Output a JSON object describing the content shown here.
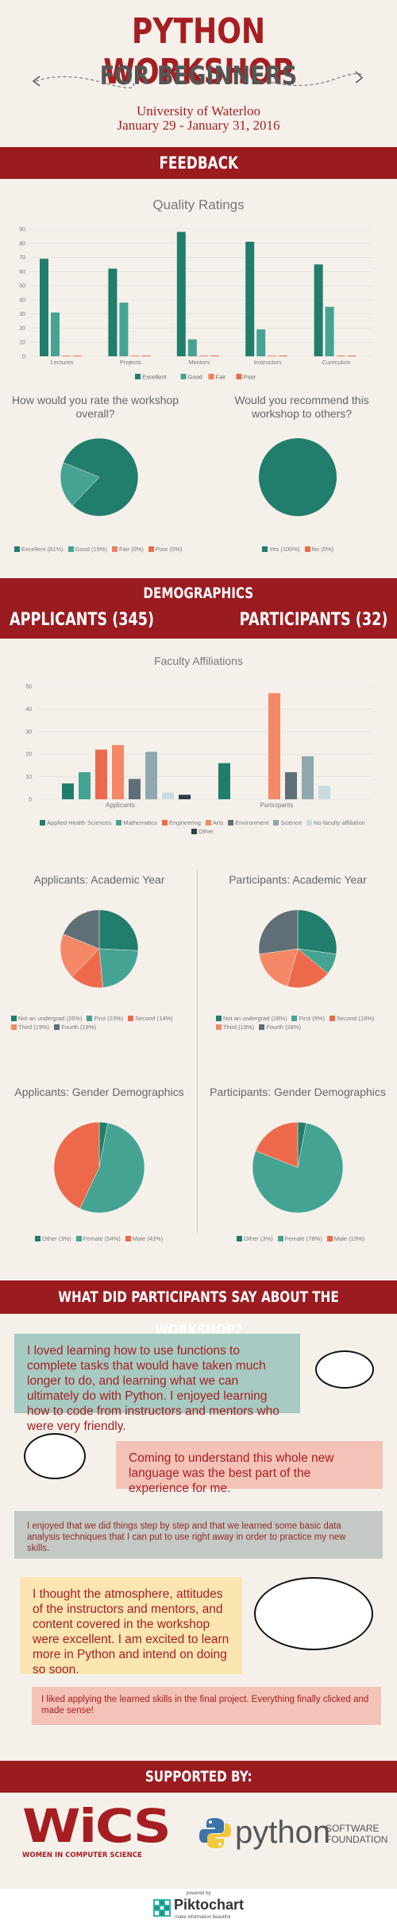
{
  "header": {
    "title": "PYTHON WORKSHOP",
    "subtitle": "FOR BEGINNERS",
    "university": "University of Waterloo",
    "dates": "January 29 - January 31, 2016"
  },
  "sections": {
    "feedback": "FEEDBACK",
    "demographics": "DEMOGRAPHICS",
    "applicants": "APPLICANTS (345)",
    "participants": "PARTICIPANTS (32)",
    "quotes_heading": "WHAT DID PARTICIPANTS SAY ABOUT THE WORKSHOP?",
    "supported_by": "SUPPORTED BY:"
  },
  "colors": {
    "excellent": "#217d6c",
    "good": "#45a393",
    "fair": "#ef7f5c",
    "poor": "#ec6a4b",
    "band": "#9a1c20"
  },
  "chart_data": [
    {
      "type": "bar",
      "title": "Quality Ratings",
      "categories": [
        "Lectures",
        "Projects",
        "Mentors",
        "Instructors",
        "Curriculum"
      ],
      "series": [
        {
          "name": "Excellent",
          "values": [
            69,
            62,
            88,
            81,
            65
          ]
        },
        {
          "name": "Good",
          "values": [
            31,
            38,
            12,
            19,
            35
          ]
        },
        {
          "name": "Fair",
          "values": [
            0,
            0,
            0,
            0,
            0
          ]
        },
        {
          "name": "Poor",
          "values": [
            0,
            0,
            0,
            0,
            0
          ]
        }
      ],
      "ylim": [
        0,
        90
      ],
      "yticks": [
        0,
        10,
        20,
        30,
        40,
        50,
        60,
        70,
        80,
        90
      ],
      "grid": true,
      "legend": "bottom"
    },
    {
      "type": "pie",
      "title": "How would you rate the workshop overall?",
      "labels": [
        "Excellent (81%)",
        "Good (19%)",
        "Fair (0%)",
        "Poor (0%)"
      ],
      "values": [
        81,
        19,
        0,
        0
      ]
    },
    {
      "type": "pie",
      "title": "Would you recommend this workshop to others?",
      "labels": [
        "Yes (100%)",
        "No (0%)"
      ],
      "values": [
        100,
        0
      ]
    },
    {
      "type": "bar",
      "title": "Faculty Affiliations",
      "categories": [
        "Applicants",
        "Participants"
      ],
      "series": [
        {
          "name": "Applied Health Sciences",
          "values": [
            7,
            16
          ]
        },
        {
          "name": "Mathematics",
          "values": [
            12,
            0
          ]
        },
        {
          "name": "Engineering",
          "values": [
            22,
            0
          ]
        },
        {
          "name": "Arts",
          "values": [
            24,
            47
          ]
        },
        {
          "name": "Environment",
          "values": [
            9,
            12
          ]
        },
        {
          "name": "Science",
          "values": [
            21,
            19
          ]
        },
        {
          "name": "No faculty affiliation",
          "values": [
            3,
            6
          ]
        },
        {
          "name": "Other",
          "values": [
            2,
            0
          ]
        }
      ],
      "ylim": [
        0,
        50
      ],
      "yticks": [
        0,
        10,
        20,
        30,
        40,
        50
      ],
      "grid": true,
      "legend": "bottom"
    },
    {
      "type": "pie",
      "title": "Applicants: Academic Year",
      "labels": [
        "Not an undergrad (26%)",
        "First (23%)",
        "Second (14%)",
        "Third (19%)",
        "Fourth (19%)"
      ],
      "values": [
        26,
        23,
        14,
        19,
        19
      ]
    },
    {
      "type": "pie",
      "title": "Participants: Academic Year",
      "labels": [
        "Not an undergrad (28%)",
        "First (9%)",
        "Second (19%)",
        "Third (19%)",
        "Fourth (28%)"
      ],
      "values": [
        28,
        9,
        19,
        19,
        28
      ]
    },
    {
      "type": "pie",
      "title": "Applicants: Gender Demographics",
      "labels": [
        "Other (3%)",
        "Female (54%)",
        "Male (43%)"
      ],
      "values": [
        3,
        54,
        43
      ]
    },
    {
      "type": "pie",
      "title": "Participants: Gender Demographics",
      "labels": [
        "Other (3%)",
        "Female (78%)",
        "Male (19%)"
      ],
      "values": [
        3,
        78,
        19
      ]
    }
  ],
  "quotes": [
    "I loved learning how to use functions to complete tasks that would have taken much longer to do, and learning what we can ultimately do with Python. I enjoyed learning how to code from instructors and mentors who were very friendly.",
    "Coming to understand this whole new language was the best part of the experience for me.",
    "I enjoyed that we did things step by step and that we learned some basic data analysis techniques that I can put to use right away in order to practice my new skills.",
    "I thought the atmosphere, attitudes of the instructors and mentors, and content covered in the workshop were excellent. I am excited to learn more in Python and intend on doing so soon.",
    "I liked applying the learned skills in the final project. Everything finally clicked and made sense!"
  ],
  "sponsors": {
    "wics_logo": "WiCS",
    "wics_name": "WOMEN IN COMPUTER SCIENCE",
    "python_logo": "python",
    "psf_line1": "SOFTWARE",
    "psf_line2": "FOUNDATION"
  },
  "footer": {
    "powered_by": "powered by",
    "brand": "Piktochart",
    "tagline": "make information beautiful"
  }
}
